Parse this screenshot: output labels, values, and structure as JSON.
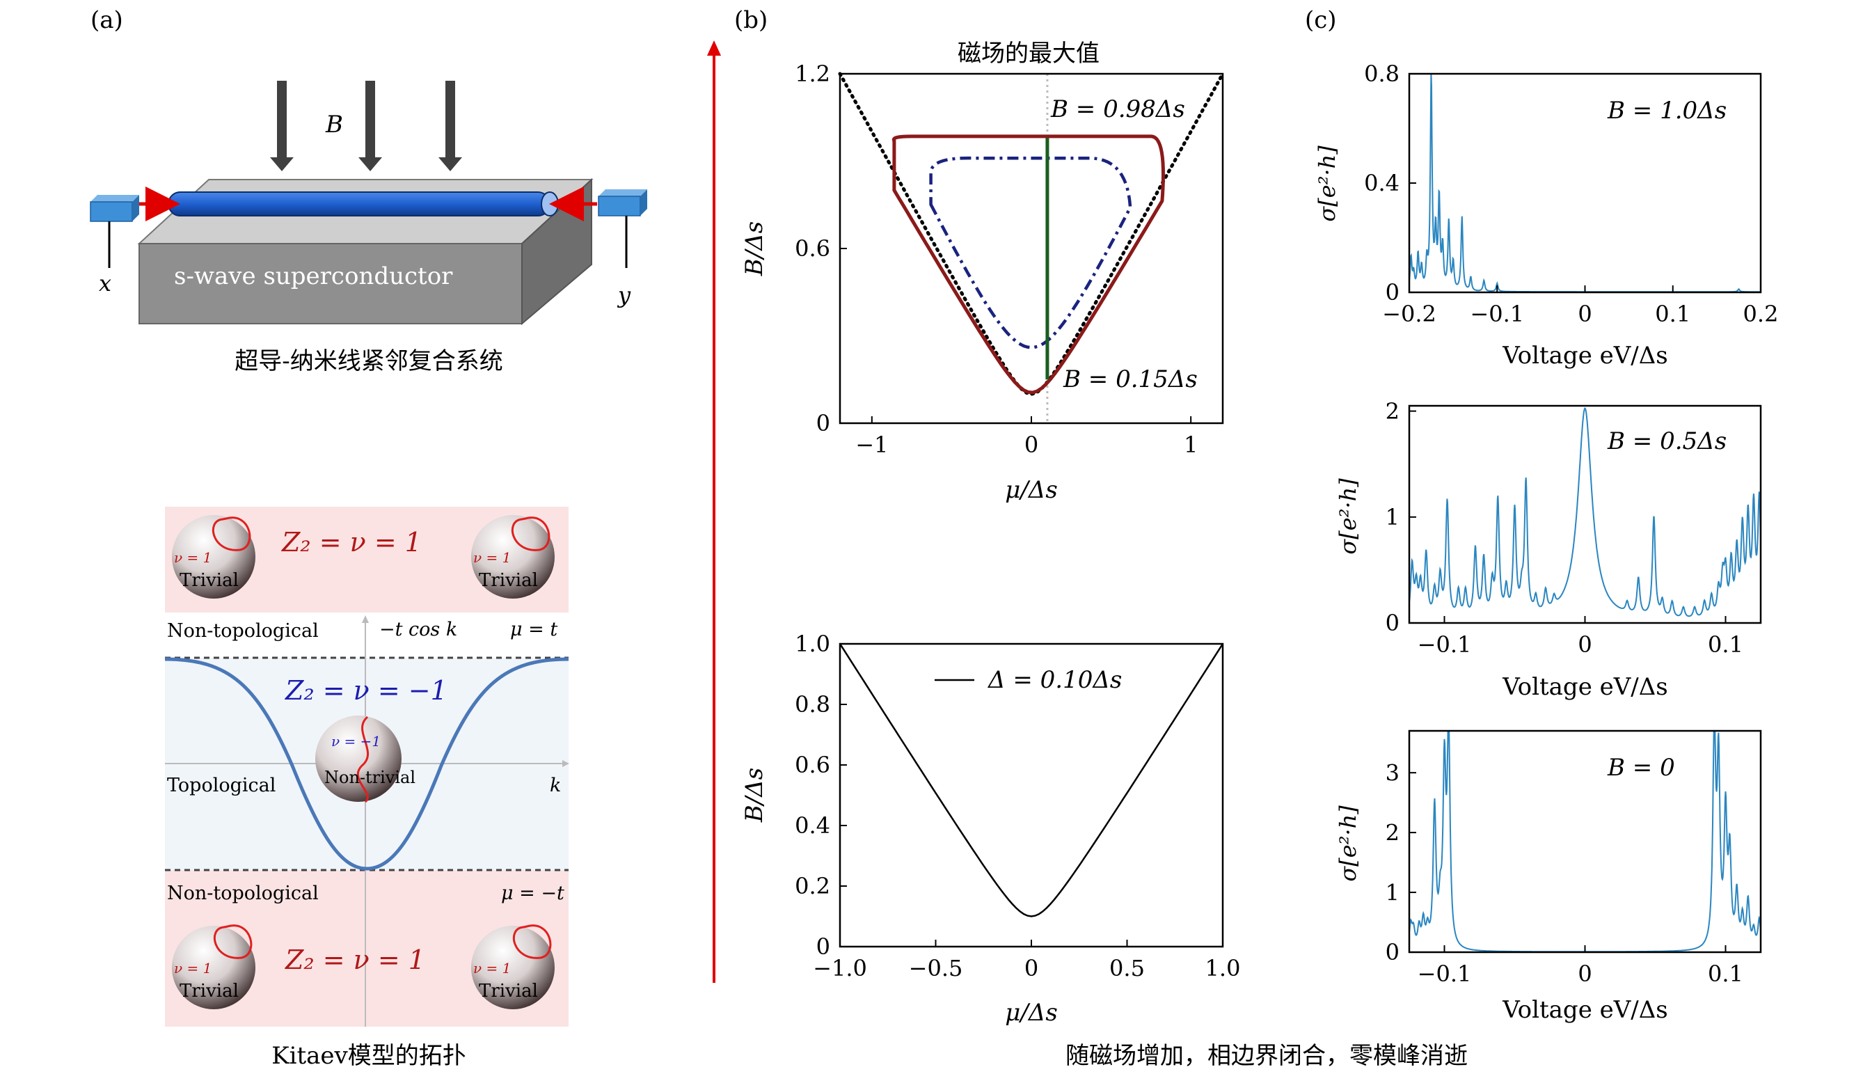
{
  "panels": {
    "a": {
      "label": "(a)",
      "field_label": "B",
      "substrate_label": "s-wave superconductor",
      "left_lead": "x",
      "right_lead": "y",
      "system_caption": "超导-纳米线紧邻复合系统",
      "kitaev": {
        "z2_trivial": "Z₂ = ν = 1",
        "z2_nontrivial": "Z₂ = ν = −1",
        "nu_trivial": "ν = 1",
        "nu_nontrivial": "ν = −1",
        "trivial": "Trivial",
        "nontrivial": "Non-trivial",
        "non_topological": "Non-topological",
        "topological": "Topological",
        "band": "−t cos k",
        "mu_plus": "μ = t",
        "mu_minus": "μ = −t",
        "k_axis": "k"
      },
      "kitaev_caption": "Kitaev模型的拓扑"
    },
    "b": {
      "label": "(b)",
      "top_title": "磁场的最大值",
      "top_ylabel": "B/Δs",
      "top_xlabel": "μ/Δs",
      "top_yticks": [
        "1.2",
        "0.6",
        "0"
      ],
      "top_xticks": [
        "−1",
        "0",
        "1"
      ],
      "annot_max": "B = 0.98Δs",
      "annot_min": "B = 0.15Δs",
      "bottom_ylabel": "B/Δs",
      "bottom_xlabel": "μ/Δs",
      "bottom_yticks": [
        "1.0",
        "0.8",
        "0.6",
        "0.4",
        "0.2",
        "0"
      ],
      "bottom_xticks": [
        "−1.0",
        "−0.5",
        "0",
        "0.5",
        "1.0"
      ],
      "legend": "Δ = 0.10Δs",
      "caption": "随磁场增加，相边界闭合，零模峰消逝"
    },
    "c": {
      "label": "(c)",
      "ylabel": "σ[e²·h]",
      "xlabel": "Voltage eV/Δs",
      "top": {
        "annot": "B = 1.0Δs",
        "yticks": [
          "0.8",
          "0.4",
          "0"
        ],
        "xticks": [
          "−0.2",
          "−0.1",
          "0",
          "0.1",
          "0.2"
        ]
      },
      "middle": {
        "annot": "B = 0.5Δs",
        "yticks": [
          "2",
          "1",
          "0"
        ],
        "xticks": [
          "−0.1",
          "0",
          "0.1"
        ]
      },
      "bottom": {
        "annot": "B = 0",
        "yticks": [
          "3",
          "2",
          "1",
          "0"
        ],
        "xticks": [
          "−0.1",
          "0",
          "0.1"
        ]
      }
    }
  },
  "chart_data": [
    {
      "type": "line",
      "title": "磁场的最大值",
      "xlabel": "μ/Δs",
      "ylabel": "B/Δs",
      "xlim": [
        -1.2,
        1.2
      ],
      "ylim": [
        0,
        1.2
      ],
      "series": [
        {
          "style": "dotted",
          "color": "#000000",
          "x": [
            -1.2,
            0,
            1.2
          ],
          "y": [
            1.2,
            0.1,
            1.2
          ]
        },
        {
          "style": "solid",
          "color": "#8b1a1a",
          "x": [
            -0.86,
            -0.6,
            -0.3,
            0,
            0.3,
            0.6,
            0.82,
            0.8,
            0.5,
            0.0,
            -0.5,
            -0.8
          ],
          "y": [
            0.98,
            0.7,
            0.38,
            0.11,
            0.36,
            0.68,
            0.95,
            0.98,
            0.98,
            0.98,
            0.98,
            0.98
          ]
        },
        {
          "style": "dashdot",
          "color": "#1a237e",
          "x": [
            -0.63,
            -0.4,
            -0.2,
            0,
            0.2,
            0.45,
            0.62,
            0.55,
            0.3,
            0,
            -0.3,
            -0.6
          ],
          "y": [
            0.86,
            0.55,
            0.35,
            0.26,
            0.3,
            0.55,
            0.86,
            0.9,
            0.91,
            0.91,
            0.91,
            0.88
          ]
        },
        {
          "style": "solid",
          "color": "#1b5e20",
          "x": [
            0.1,
            0.1
          ],
          "y": [
            0.15,
            0.98
          ]
        }
      ],
      "annotations": [
        "B = 0.98Δs",
        "B = 0.15Δs"
      ]
    },
    {
      "type": "line",
      "xlabel": "μ/Δs",
      "ylabel": "B/Δs",
      "xlim": [
        -1.0,
        1.0
      ],
      "ylim": [
        0,
        1.0
      ],
      "series": [
        {
          "name": "Δ = 0.10Δs",
          "color": "#000000",
          "x": [
            -1.0,
            -0.75,
            -0.5,
            -0.25,
            -0.1,
            0,
            0.1,
            0.25,
            0.5,
            0.75,
            1.0
          ],
          "y": [
            1.0,
            0.76,
            0.51,
            0.27,
            0.14,
            0.1,
            0.14,
            0.27,
            0.51,
            0.76,
            1.0
          ]
        }
      ]
    },
    {
      "type": "line",
      "annotation": "B = 1.0Δs",
      "xlabel": "Voltage eV/Δs",
      "ylabel": "σ[e²·h]",
      "xlim": [
        -0.2,
        0.2
      ],
      "ylim": [
        0,
        0.8
      ],
      "color": "#2a86c0",
      "peaks": [
        {
          "x": -0.198,
          "y": 0.12
        },
        {
          "x": -0.195,
          "y": 0.06
        },
        {
          "x": -0.19,
          "y": 0.13
        },
        {
          "x": -0.186,
          "y": 0.08
        },
        {
          "x": -0.18,
          "y": 0.1
        },
        {
          "x": -0.175,
          "y": 0.78
        },
        {
          "x": -0.17,
          "y": 0.2
        },
        {
          "x": -0.166,
          "y": 0.33
        },
        {
          "x": -0.162,
          "y": 0.15
        },
        {
          "x": -0.155,
          "y": 0.25
        },
        {
          "x": -0.15,
          "y": 0.1
        },
        {
          "x": -0.14,
          "y": 0.27
        },
        {
          "x": -0.13,
          "y": 0.05
        },
        {
          "x": -0.115,
          "y": 0.04
        },
        {
          "x": -0.1,
          "y": 0.03
        },
        {
          "x": 0.175,
          "y": 0.01
        }
      ]
    },
    {
      "type": "line",
      "annotation": "B = 0.5Δs",
      "xlabel": "Voltage eV/Δs",
      "ylabel": "σ[e²·h]",
      "xlim": [
        -0.125,
        0.125
      ],
      "ylim": [
        0,
        2.05
      ],
      "color": "#2a86c0",
      "zero_peak": {
        "x": 0,
        "y": 2.0,
        "width": 0.006
      },
      "peaks": [
        {
          "x": -0.123,
          "y": 0.5
        },
        {
          "x": -0.12,
          "y": 0.3
        },
        {
          "x": -0.117,
          "y": 0.3
        },
        {
          "x": -0.113,
          "y": 0.6
        },
        {
          "x": -0.107,
          "y": 0.25
        },
        {
          "x": -0.103,
          "y": 0.38
        },
        {
          "x": -0.098,
          "y": 1.1
        },
        {
          "x": -0.09,
          "y": 0.25
        },
        {
          "x": -0.085,
          "y": 0.25
        },
        {
          "x": -0.078,
          "y": 0.65
        },
        {
          "x": -0.072,
          "y": 0.55
        },
        {
          "x": -0.066,
          "y": 0.3
        },
        {
          "x": -0.062,
          "y": 1.1
        },
        {
          "x": -0.056,
          "y": 0.25
        },
        {
          "x": -0.05,
          "y": 1.0
        },
        {
          "x": -0.045,
          "y": 0.2
        },
        {
          "x": -0.042,
          "y": 1.25
        },
        {
          "x": -0.035,
          "y": 0.15
        },
        {
          "x": -0.028,
          "y": 0.2
        },
        {
          "x": -0.022,
          "y": 0.1
        },
        {
          "x": 0.03,
          "y": 0.1
        },
        {
          "x": 0.038,
          "y": 0.35
        },
        {
          "x": 0.049,
          "y": 0.95
        },
        {
          "x": 0.055,
          "y": 0.15
        },
        {
          "x": 0.062,
          "y": 0.15
        },
        {
          "x": 0.07,
          "y": 0.1
        },
        {
          "x": 0.078,
          "y": 0.1
        },
        {
          "x": 0.085,
          "y": 0.15
        },
        {
          "x": 0.09,
          "y": 0.2
        },
        {
          "x": 0.095,
          "y": 0.25
        },
        {
          "x": 0.098,
          "y": 0.35
        },
        {
          "x": 0.1,
          "y": 0.4
        },
        {
          "x": 0.104,
          "y": 0.5
        },
        {
          "x": 0.108,
          "y": 0.6
        },
        {
          "x": 0.112,
          "y": 0.8
        },
        {
          "x": 0.116,
          "y": 0.9
        },
        {
          "x": 0.12,
          "y": 1.0
        },
        {
          "x": 0.124,
          "y": 1.1
        }
      ]
    },
    {
      "type": "line",
      "annotation": "B = 0",
      "xlabel": "Voltage eV/Δs",
      "ylabel": "σ[e²·h]",
      "xlim": [
        -0.125,
        0.125
      ],
      "ylim": [
        0,
        3.7
      ],
      "color": "#2a86c0",
      "peaks": [
        {
          "x": -0.124,
          "y": 0.4
        },
        {
          "x": -0.122,
          "y": 0.3
        },
        {
          "x": -0.118,
          "y": 0.35
        },
        {
          "x": -0.115,
          "y": 0.45
        },
        {
          "x": -0.112,
          "y": 0.3
        },
        {
          "x": -0.107,
          "y": 2.35
        },
        {
          "x": -0.103,
          "y": 0.6
        },
        {
          "x": -0.1,
          "y": 2.9
        },
        {
          "x": -0.097,
          "y": 3.6
        },
        {
          "x": 0.092,
          "y": 3.6
        },
        {
          "x": 0.095,
          "y": 3.0
        },
        {
          "x": 0.1,
          "y": 2.2
        },
        {
          "x": 0.103,
          "y": 1.5
        },
        {
          "x": 0.108,
          "y": 0.9
        },
        {
          "x": 0.112,
          "y": 0.5
        },
        {
          "x": 0.116,
          "y": 0.8
        },
        {
          "x": 0.12,
          "y": 0.3
        },
        {
          "x": 0.124,
          "y": 0.5
        }
      ]
    }
  ]
}
